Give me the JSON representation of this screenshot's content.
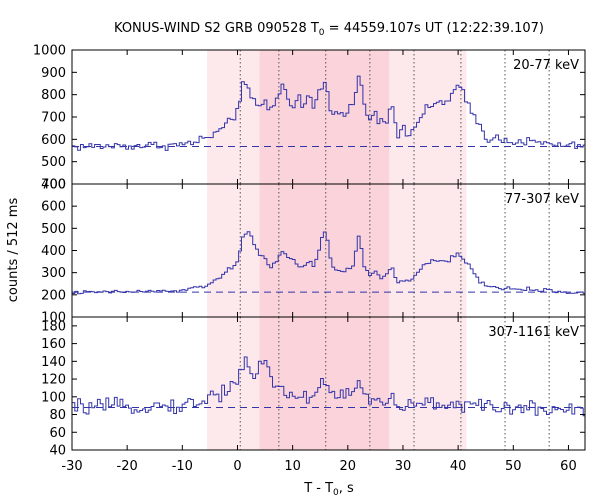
{
  "chart_data": {
    "type": "line",
    "title_prefix": "KONUS-WIND S2 GRB 090528 T",
    "title_sub": "0",
    "title_suffix": " = 44559.107s UT (12:22:39.107)",
    "xlabel_prefix": "T - T",
    "xlabel_sub": "0",
    "xlabel_suffix": ", s",
    "ylabel": "counts / 512 ms",
    "xlim": [
      -30,
      63
    ],
    "x_ticks": [
      -30,
      -20,
      -10,
      0,
      10,
      20,
      30,
      40,
      50,
      60
    ],
    "x_tick_labels": [
      "-30",
      "-20",
      "-10",
      "0",
      "10",
      "20",
      "30",
      "40",
      "50",
      "60"
    ],
    "bin_width": 0.512,
    "colors": {
      "line": "#3333aa",
      "shade_light": "#fde9ec",
      "shade_dark": "#fad4da",
      "dotted": "#555555"
    },
    "shaded_intervals": [
      {
        "x0": -5.5,
        "x1": 41.5,
        "level": "light"
      },
      {
        "x0": 4.0,
        "x1": 27.5,
        "level": "dark"
      }
    ],
    "vertical_markers": [
      0.5,
      7.5,
      16.0,
      24.0,
      32.0,
      40.5,
      48.5,
      56.5
    ],
    "panels": [
      {
        "energy_label": "20-77 keV",
        "ylim": [
          400,
          1000
        ],
        "y_ticks": [
          400,
          500,
          600,
          700,
          800,
          900,
          1000
        ],
        "y_tick_labels": [
          "400",
          "500",
          "600",
          "700",
          "800",
          "900",
          "1000"
        ],
        "background": 568,
        "profile": [
          [
            -30,
            567
          ],
          [
            -10,
            575
          ],
          [
            -6,
            600
          ],
          [
            -3,
            640
          ],
          [
            -1,
            680
          ],
          [
            0,
            740
          ],
          [
            1,
            860
          ],
          [
            2,
            800
          ],
          [
            3,
            760
          ],
          [
            4,
            750
          ],
          [
            5,
            760
          ],
          [
            6,
            740
          ],
          [
            7,
            770
          ],
          [
            8,
            840
          ],
          [
            9,
            800
          ],
          [
            10,
            760
          ],
          [
            11,
            790
          ],
          [
            12,
            740
          ],
          [
            13,
            800
          ],
          [
            14,
            730
          ],
          [
            15,
            840
          ],
          [
            16,
            850
          ],
          [
            17,
            720
          ],
          [
            18,
            700
          ],
          [
            19,
            750
          ],
          [
            20,
            720
          ],
          [
            21,
            760
          ],
          [
            22,
            880
          ],
          [
            23,
            760
          ],
          [
            24,
            690
          ],
          [
            25,
            720
          ],
          [
            26,
            690
          ],
          [
            27,
            680
          ],
          [
            28,
            780
          ],
          [
            29,
            620
          ],
          [
            30,
            640
          ],
          [
            31,
            610
          ],
          [
            32,
            660
          ],
          [
            33,
            690
          ],
          [
            34,
            720
          ],
          [
            35,
            740
          ],
          [
            36,
            760
          ],
          [
            37,
            780
          ],
          [
            38,
            760
          ],
          [
            39,
            800
          ],
          [
            40,
            840
          ],
          [
            41,
            790
          ],
          [
            42,
            740
          ],
          [
            43,
            700
          ],
          [
            44,
            660
          ],
          [
            45,
            610
          ],
          [
            48,
            600
          ],
          [
            52,
            590
          ],
          [
            56,
            580
          ],
          [
            60,
            570
          ],
          [
            63,
            575
          ]
        ]
      },
      {
        "energy_label": "77-307 keV",
        "ylim": [
          100,
          700
        ],
        "y_ticks": [
          100,
          200,
          300,
          400,
          500,
          600,
          700
        ],
        "y_tick_labels": [
          "100",
          "200",
          "300",
          "400",
          "500",
          "600",
          "700"
        ],
        "background": 212,
        "profile": [
          [
            -30,
            210
          ],
          [
            -10,
            218
          ],
          [
            -6,
            240
          ],
          [
            -3,
            280
          ],
          [
            -1,
            320
          ],
          [
            0,
            360
          ],
          [
            1,
            450
          ],
          [
            2,
            480
          ],
          [
            3,
            440
          ],
          [
            4,
            380
          ],
          [
            5,
            360
          ],
          [
            6,
            330
          ],
          [
            7,
            350
          ],
          [
            8,
            400
          ],
          [
            9,
            380
          ],
          [
            10,
            350
          ],
          [
            11,
            330
          ],
          [
            12,
            320
          ],
          [
            13,
            350
          ],
          [
            14,
            330
          ],
          [
            15,
            420
          ],
          [
            16,
            500
          ],
          [
            17,
            340
          ],
          [
            18,
            310
          ],
          [
            19,
            300
          ],
          [
            20,
            320
          ],
          [
            21,
            340
          ],
          [
            22,
            460
          ],
          [
            23,
            330
          ],
          [
            24,
            290
          ],
          [
            25,
            300
          ],
          [
            26,
            280
          ],
          [
            27,
            290
          ],
          [
            28,
            330
          ],
          [
            29,
            250
          ],
          [
            30,
            270
          ],
          [
            31,
            260
          ],
          [
            32,
            280
          ],
          [
            33,
            310
          ],
          [
            34,
            330
          ],
          [
            35,
            350
          ],
          [
            36,
            360
          ],
          [
            37,
            350
          ],
          [
            38,
            340
          ],
          [
            39,
            370
          ],
          [
            40,
            380
          ],
          [
            41,
            360
          ],
          [
            42,
            330
          ],
          [
            43,
            300
          ],
          [
            44,
            260
          ],
          [
            45,
            240
          ],
          [
            48,
            230
          ],
          [
            52,
            225
          ],
          [
            56,
            220
          ],
          [
            60,
            210
          ],
          [
            63,
            210
          ]
        ]
      },
      {
        "energy_label": "307-1161 keV",
        "ylim": [
          40,
          190
        ],
        "y_ticks": [
          40,
          60,
          80,
          100,
          120,
          140,
          160,
          180
        ],
        "y_tick_labels": [
          "40",
          "60",
          "80",
          "100",
          "120",
          "140",
          "160",
          "180"
        ],
        "background": 88,
        "profile": [
          [
            -30,
            88
          ],
          [
            -10,
            90
          ],
          [
            -6,
            95
          ],
          [
            -3,
            105
          ],
          [
            -1,
            115
          ],
          [
            0,
            120
          ],
          [
            1,
            135
          ],
          [
            2,
            140
          ],
          [
            3,
            125
          ],
          [
            4,
            130
          ],
          [
            5,
            140
          ],
          [
            6,
            120
          ],
          [
            7,
            115
          ],
          [
            8,
            110
          ],
          [
            9,
            105
          ],
          [
            10,
            100
          ],
          [
            11,
            100
          ],
          [
            12,
            98
          ],
          [
            13,
            102
          ],
          [
            14,
            100
          ],
          [
            15,
            115
          ],
          [
            16,
            120
          ],
          [
            17,
            105
          ],
          [
            18,
            100
          ],
          [
            19,
            100
          ],
          [
            20,
            105
          ],
          [
            21,
            110
          ],
          [
            22,
            120
          ],
          [
            23,
            100
          ],
          [
            24,
            95
          ],
          [
            25,
            95
          ],
          [
            26,
            92
          ],
          [
            27,
            92
          ],
          [
            28,
            100
          ],
          [
            29,
            88
          ],
          [
            30,
            90
          ],
          [
            32,
            90
          ],
          [
            34,
            92
          ],
          [
            36,
            92
          ],
          [
            38,
            92
          ],
          [
            40,
            93
          ],
          [
            42,
            90
          ],
          [
            44,
            88
          ],
          [
            48,
            88
          ],
          [
            52,
            87
          ],
          [
            56,
            87
          ],
          [
            60,
            86
          ],
          [
            63,
            86
          ]
        ]
      }
    ]
  }
}
